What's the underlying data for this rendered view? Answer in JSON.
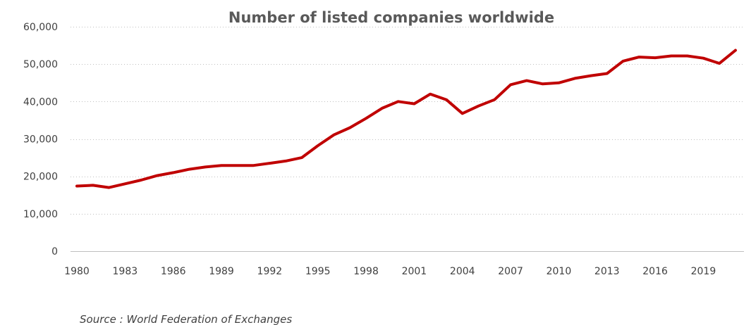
{
  "chart_data": {
    "type": "line",
    "title": "Number of listed companies worldwide",
    "xlabel": "",
    "ylabel": "",
    "ylim": [
      0,
      60000
    ],
    "xlim": [
      1980,
      2021
    ],
    "grid": true,
    "legend": "none",
    "y_ticks": [
      "0",
      "10,000",
      "20,000",
      "30,000",
      "40,000",
      "50,000",
      "60,000"
    ],
    "y_tick_values": [
      0,
      10000,
      20000,
      30000,
      40000,
      50000,
      60000
    ],
    "x_ticks": [
      "1980",
      "1983",
      "1986",
      "1989",
      "1992",
      "1995",
      "1998",
      "2001",
      "2004",
      "2007",
      "2010",
      "2013",
      "2016",
      "2019"
    ],
    "x_tick_values": [
      1980,
      1983,
      1986,
      1989,
      1992,
      1995,
      1998,
      2001,
      2004,
      2007,
      2010,
      2013,
      2016,
      2019
    ],
    "line_color": "#c00000",
    "series": [
      {
        "x": [
          1980,
          1981,
          1982,
          1983,
          1984,
          1985,
          1986,
          1987,
          1988,
          1989,
          1990,
          1991,
          1992,
          1993,
          1994,
          1995,
          1996,
          1997,
          1998,
          1999,
          2000,
          2001,
          2002,
          2003,
          2004,
          2005,
          2006,
          2007,
          2008,
          2009,
          2010,
          2011,
          2012,
          2013,
          2014,
          2015,
          2016,
          2017,
          2018,
          2019,
          2020,
          2021
        ],
        "values": [
          17400,
          17600,
          17000,
          18000,
          19000,
          20200,
          21000,
          21900,
          22500,
          22900,
          22900,
          22900,
          23500,
          24100,
          25000,
          28200,
          31100,
          33000,
          35500,
          38200,
          40000,
          39400,
          42000,
          40500,
          36800,
          38800,
          40500,
          44500,
          45600,
          44700,
          45000,
          46200,
          46900,
          47500,
          50800,
          51900,
          51700,
          52200,
          52200,
          51600,
          50200,
          53700
        ]
      }
    ]
  },
  "source": "Source : World Federation of Exchanges"
}
